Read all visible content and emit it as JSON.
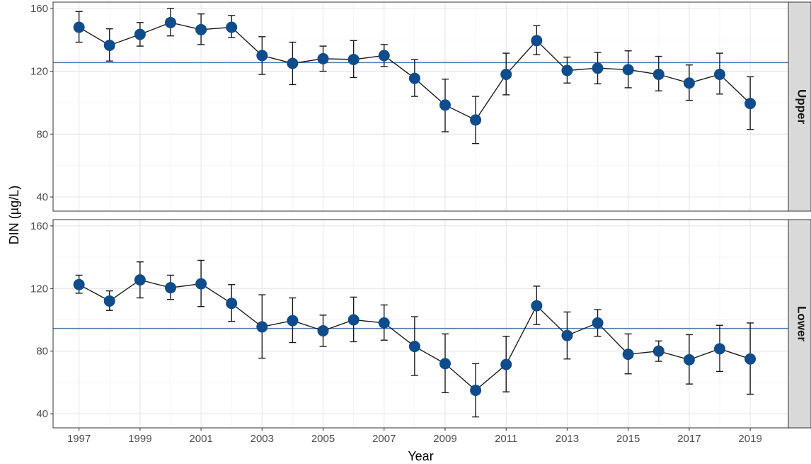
{
  "chart_data": {
    "type": "line",
    "xlabel": "Year",
    "ylabel": "DIN (µg/L)",
    "ylim": [
      31,
      164
    ],
    "yticks": [
      40,
      80,
      120,
      160
    ],
    "xticks": [
      1997,
      1999,
      2001,
      2003,
      2005,
      2007,
      2009,
      2011,
      2013,
      2015,
      2017,
      2019
    ],
    "x": [
      1997,
      1998,
      1999,
      2000,
      2001,
      2002,
      2003,
      2004,
      2005,
      2006,
      2007,
      2008,
      2009,
      2010,
      2011,
      2012,
      2013,
      2014,
      2015,
      2016,
      2017,
      2018,
      2019
    ],
    "grid": true,
    "colors": {
      "point": "#0f4c8c",
      "line": "#1a1a1a",
      "reference_line": "#4a7bb0",
      "strip_fill": "#d9d9d9"
    },
    "panels": [
      {
        "label": "Upper",
        "reference_line": 125.5,
        "values": [
          148,
          136.5,
          143.5,
          151,
          146.5,
          148,
          130,
          125,
          128,
          127.5,
          130,
          115.5,
          98.5,
          89,
          118,
          139.5,
          120.5,
          122,
          121,
          118,
          112.5,
          118,
          99.5
        ],
        "error_low": [
          138.5,
          126.5,
          136,
          142.5,
          137,
          141.5,
          118,
          111.5,
          120,
          116,
          123,
          104,
          81.5,
          74,
          105,
          130.5,
          112.5,
          112,
          109.5,
          107.5,
          101.5,
          105.5,
          83
        ],
        "error_high": [
          158,
          147,
          151,
          160,
          156.5,
          155.5,
          142,
          138.5,
          136,
          139.5,
          137,
          127.5,
          115,
          104,
          131.5,
          149,
          129,
          132,
          133,
          129.5,
          124,
          131.5,
          116.5
        ]
      },
      {
        "label": "Lower",
        "reference_line": 94.5,
        "values": [
          122.5,
          112,
          125.5,
          120.5,
          123,
          110.5,
          95.5,
          99.5,
          93,
          100,
          98,
          83,
          72,
          55,
          71.5,
          109,
          90,
          98,
          78,
          80,
          74.5,
          81.5,
          75
        ],
        "error_low": [
          117,
          106,
          114,
          113,
          108.5,
          99,
          75.5,
          85.5,
          83,
          86,
          87,
          64.5,
          53.5,
          38,
          54,
          97,
          75,
          89.5,
          65.5,
          73.5,
          59,
          67,
          52.5
        ],
        "error_high": [
          128.5,
          118.5,
          137,
          128.5,
          138,
          122.5,
          116,
          114,
          103,
          114.5,
          109.5,
          102,
          91,
          72,
          89.5,
          121.5,
          105,
          106.5,
          91,
          86.5,
          90.5,
          96.5,
          98
        ]
      }
    ]
  }
}
